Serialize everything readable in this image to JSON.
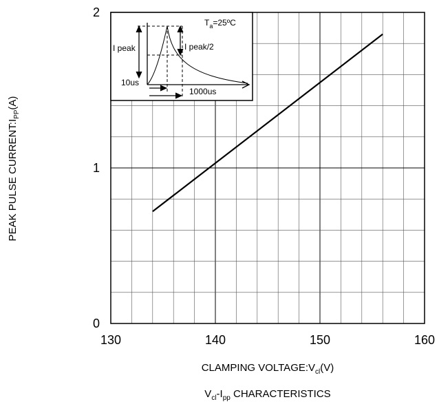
{
  "chart_data": {
    "type": "line",
    "title": "Vcl-Ipp CHARACTERISTICS",
    "title_parts": {
      "v": "V",
      "v_sub": "cl",
      "dash": "-I",
      "i_sub": "pp",
      "rest": " CHARACTERISTICS"
    },
    "xlabel": "CLAMPING VOLTAGE:Vcl(V)",
    "xlabel_parts": {
      "main": "CLAMPING VOLTAGE:V",
      "sub": "cl",
      "tail": "(V)"
    },
    "ylabel": "PEAK PULSE CURRENT:IPP(A)",
    "ylabel_parts": {
      "main": "PEAK PULSE CURRENT:I",
      "sub": "PP",
      "tail": "(A)"
    },
    "xlim": [
      130,
      160
    ],
    "ylim": [
      0,
      2
    ],
    "x_ticks": [
      "130",
      "140",
      "150",
      "160"
    ],
    "y_ticks": [
      "0",
      "1",
      "2"
    ],
    "grid": true,
    "grid_minor_x_step": 2,
    "grid_minor_y_step": 0.2,
    "series": [
      {
        "x": [
          134,
          156
        ],
        "y": [
          0.72,
          1.86
        ],
        "color": "#000000"
      }
    ],
    "inset": {
      "temperature": {
        "t": "T",
        "sub": "a",
        "rest": "=25ºC"
      },
      "labels": {
        "i_peak": "I peak",
        "i_peak_half": "I peak/2",
        "rise": "10us",
        "decay": "1000us"
      }
    }
  }
}
